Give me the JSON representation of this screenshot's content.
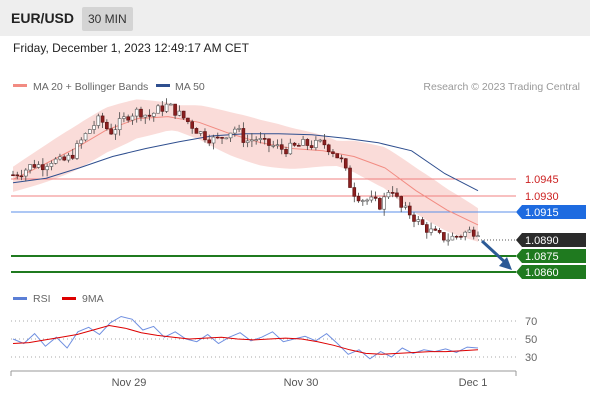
{
  "header": {
    "symbol": "EUR/USD",
    "timeframe": "30 MIN",
    "datetime": "Friday, December 1, 2023 12:49:17 AM CET"
  },
  "legend": {
    "ma20_bb_label": "MA 20 + Bollinger Bands",
    "ma50_label": "MA 50",
    "source": "Research © 2023 Trading Central",
    "ma20_color": "#f28b82",
    "ma50_color": "#2f4f8f"
  },
  "rsi_legend": {
    "rsi_label": "RSI",
    "ma9_label": "9MA",
    "rsi_color": "#5b7fd6",
    "ma9_color": "#dd0000"
  },
  "chart_data": {
    "type": "candlestick",
    "x_ticks": [
      "Nov 29",
      "Nov 30",
      "Dec 1"
    ],
    "price_range": [
      1.0845,
      1.1001
    ],
    "levels": [
      {
        "value": "1.0945",
        "kind": "resistance",
        "color": "#cc2222"
      },
      {
        "value": "1.0930",
        "kind": "resistance",
        "color": "#cc2222"
      },
      {
        "value": "1.0915",
        "kind": "pivot",
        "color": "#1e6be0"
      },
      {
        "value": "1.0890",
        "kind": "last",
        "color": "#2b2b2b"
      },
      {
        "value": "1.0875",
        "kind": "support",
        "color": "#1f7a1f"
      },
      {
        "value": "1.0860",
        "kind": "support",
        "color": "#1f7a1f"
      }
    ],
    "close_path": [
      1.0939,
      1.0942,
      1.0948,
      1.0947,
      1.0952,
      1.095,
      1.0955,
      1.0968,
      1.098,
      1.0988,
      1.0976,
      1.0984,
      1.0992,
      1.0995,
      1.099,
      1.0996,
      1.1,
      1.0993,
      1.0986,
      1.0978,
      1.0972,
      1.0969,
      1.0975,
      1.098,
      1.0968,
      1.0971,
      1.0966,
      1.0964,
      1.0961,
      1.0963,
      1.0966,
      1.0965,
      1.0967,
      1.096,
      1.095,
      1.0925,
      1.0918,
      1.0916,
      1.0912,
      1.093,
      1.091,
      1.0905,
      1.0896,
      1.089,
      1.0885,
      1.0883,
      1.0886,
      1.0889,
      1.089
    ],
    "ma50_path": [
      1.0932,
      1.0936,
      1.0945,
      1.0955,
      1.0962,
      1.0968,
      1.0973,
      1.0975,
      1.0975,
      1.0974,
      1.0971,
      1.0967,
      1.096,
      1.094,
      1.0925
    ],
    "ma20_path": [
      1.0935,
      1.0948,
      1.0962,
      1.0978,
      1.0988,
      1.099,
      1.0985,
      1.0975,
      1.0967,
      1.0962,
      1.096,
      1.0955,
      1.0945,
      1.0925,
      1.0908,
      1.0895
    ],
    "rsi": {
      "levels": [
        "70",
        "50",
        "30"
      ],
      "range": [
        15,
        85
      ],
      "rsi_path": [
        50,
        45,
        56,
        42,
        52,
        40,
        58,
        63,
        55,
        68,
        75,
        72,
        60,
        64,
        52,
        58,
        50,
        47,
        55,
        45,
        52,
        57,
        48,
        52,
        58,
        47,
        50,
        53,
        48,
        56,
        45,
        33,
        38,
        28,
        36,
        30,
        40,
        34,
        38,
        36,
        39,
        35,
        41,
        40
      ],
      "ma9_path": [
        45,
        46,
        49,
        52,
        55,
        60,
        65,
        62,
        57,
        54,
        52,
        50,
        51,
        52,
        50,
        49,
        50,
        51,
        50,
        47,
        43,
        38,
        34,
        33,
        34,
        35,
        36,
        36,
        37,
        38
      ]
    }
  }
}
